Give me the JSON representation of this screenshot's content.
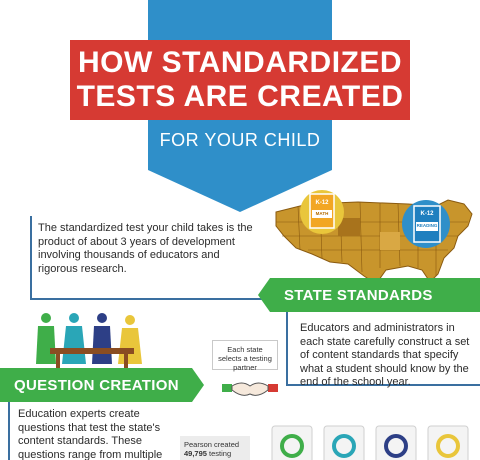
{
  "header": {
    "title_line1": "HOW STANDARDIZED",
    "title_line2": "TESTS ARE CREATED",
    "subtitle": "FOR YOUR CHILD"
  },
  "intro": {
    "text": "The standardized test your child takes is the product of about 3 years of development involving thousands of educators and rigorous research."
  },
  "books": {
    "math_grade": "K-12",
    "math_label": "MATH",
    "reading_grade": "K-12",
    "reading_label": "READING"
  },
  "state_standards": {
    "heading": "STATE STANDARDS",
    "text": "Educators and administrators in each state carefully construct a set of content standards that specify what a student should know by the end of the school year."
  },
  "partner_note": {
    "text": "Each state selects a testing partner"
  },
  "question_creation": {
    "heading": "QUESTION CREATION",
    "text": "Education experts create questions that test the state's content standards. These questions range from multiple choice questions"
  },
  "pearson": {
    "text_prefix": "Pearson created",
    "number": "49,795",
    "text_suffix": "testing"
  },
  "colors": {
    "blue": "#2f8fc9",
    "red": "#d63a33",
    "green": "#3fae49",
    "map_fill": "#c8952c",
    "outline_blue": "#3a6fa0"
  }
}
